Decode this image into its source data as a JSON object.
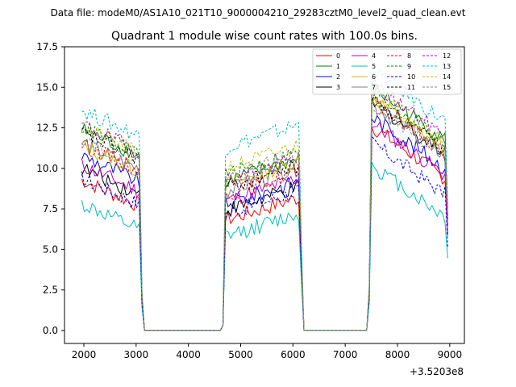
{
  "chart_data": {
    "type": "line",
    "suptitle": "Data file: modeM0/AS1A10_021T10_9000004210_29283cztM0_level2_quad_clean.evt",
    "title": "Quadrant 1 module wise count rates with 100.0s bins.",
    "xlabel": "",
    "ylabel": "",
    "x_offset_label": "+3.5203e8",
    "xlim": [
      1630,
      9280
    ],
    "ylim": [
      -0.8,
      17.5
    ],
    "xticks": [
      2000,
      3000,
      4000,
      5000,
      6000,
      7000,
      8000,
      9000
    ],
    "xtick_labels": [
      "2000",
      "3000",
      "4000",
      "5000",
      "6000",
      "7000",
      "8000",
      "9000"
    ],
    "yticks": [
      0.0,
      2.5,
      5.0,
      7.5,
      10.0,
      12.5,
      15.0,
      17.5
    ],
    "ytick_labels": [
      "0.0",
      "2.5",
      "5.0",
      "7.5",
      "10.0",
      "12.5",
      "15.0",
      "17.5"
    ],
    "legend_position": "upper right",
    "segments": [
      {
        "start": 1960,
        "end": 3060
      },
      {
        "start": 4710,
        "end": 6110
      },
      {
        "start": 7510,
        "end": 8910
      }
    ],
    "series": [
      {
        "name": "0",
        "color": "#ff0000",
        "dash": "solid",
        "levels": [
          8.7,
          7.4,
          10.8
        ]
      },
      {
        "name": "1",
        "color": "#008000",
        "dash": "solid",
        "levels": [
          11.8,
          9.8,
          13.2
        ]
      },
      {
        "name": "2",
        "color": "#0000ff",
        "dash": "solid",
        "levels": [
          10.2,
          8.4,
          11.4
        ]
      },
      {
        "name": "3",
        "color": "#000000",
        "dash": "solid",
        "levels": [
          9.4,
          8.0,
          12.3
        ]
      },
      {
        "name": "4",
        "color": "#bf00bf",
        "dash": "solid",
        "levels": [
          9.6,
          8.6,
          11.0
        ]
      },
      {
        "name": "5",
        "color": "#00bfbf",
        "dash": "solid",
        "levels": [
          7.2,
          6.4,
          8.4
        ]
      },
      {
        "name": "6",
        "color": "#bfbf00",
        "dash": "solid",
        "levels": [
          10.8,
          9.6,
          12.6
        ]
      },
      {
        "name": "7",
        "color": "#808080",
        "dash": "solid",
        "levels": [
          11.0,
          9.2,
          12.2
        ]
      },
      {
        "name": "8",
        "color": "#ff0000",
        "dash": "dashed",
        "levels": [
          10.9,
          9.0,
          12.4
        ]
      },
      {
        "name": "9",
        "color": "#008000",
        "dash": "dashed",
        "levels": [
          12.0,
          10.2,
          13.0
        ]
      },
      {
        "name": "10",
        "color": "#0000ff",
        "dash": "dashed",
        "levels": [
          8.8,
          7.8,
          9.8
        ]
      },
      {
        "name": "11",
        "color": "#000000",
        "dash": "dashed",
        "levels": [
          11.6,
          9.4,
          12.5
        ]
      },
      {
        "name": "12",
        "color": "#bf00bf",
        "dash": "dashed",
        "levels": [
          12.1,
          9.8,
          13.4
        ]
      },
      {
        "name": "13",
        "color": "#00bfbf",
        "dash": "dashed",
        "levels": [
          13.0,
          11.9,
          14.3
        ]
      },
      {
        "name": "14",
        "color": "#bfbf00",
        "dash": "dashed",
        "levels": [
          11.9,
          10.6,
          13.0
        ]
      },
      {
        "name": "15",
        "color": "#808080",
        "dash": "dashed",
        "levels": [
          11.3,
          10.0,
          12.2
        ]
      }
    ]
  }
}
